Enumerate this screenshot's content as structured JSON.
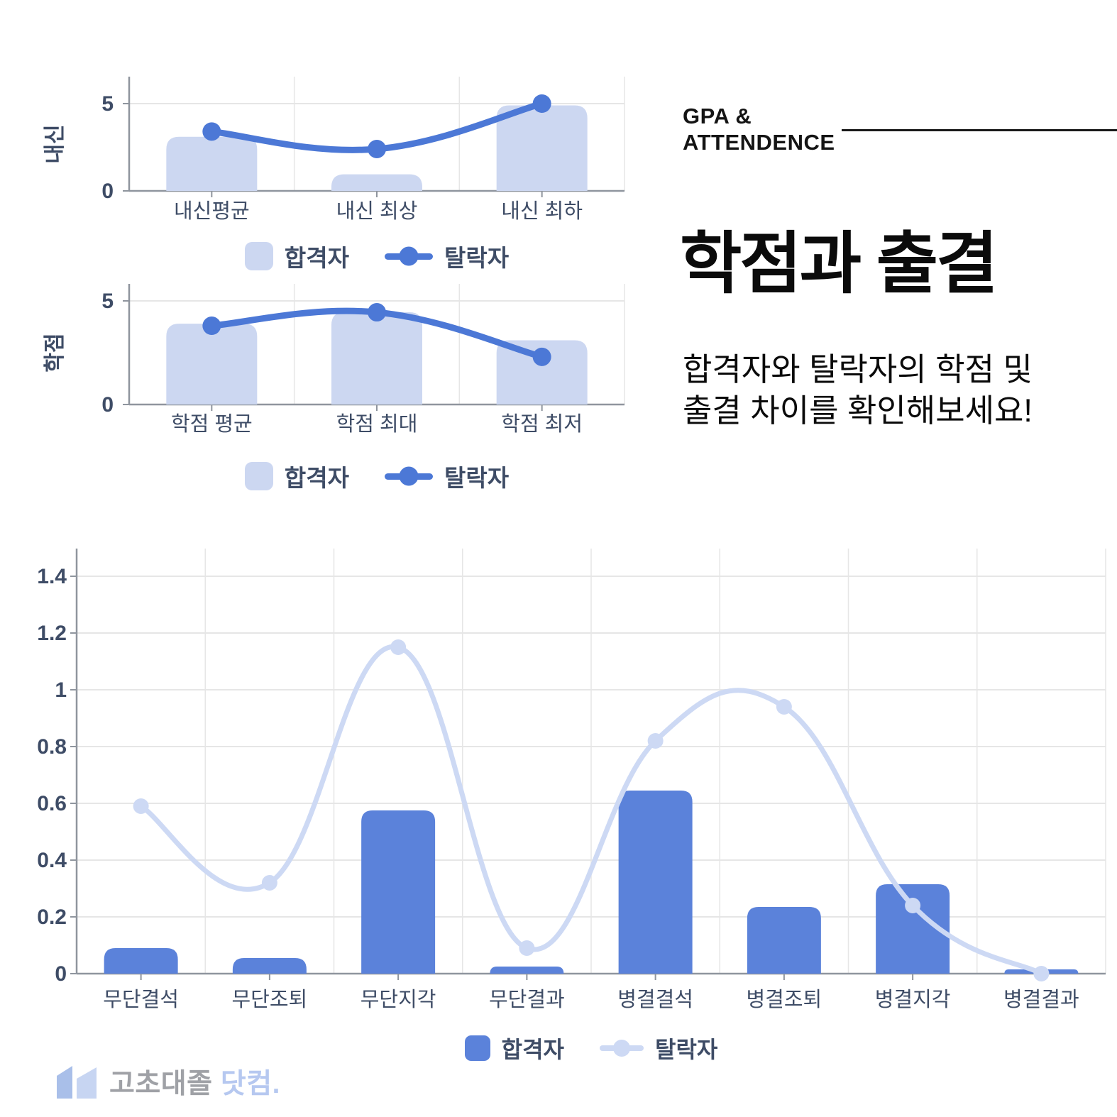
{
  "header": {
    "eyebrow_line1": "GPA &",
    "eyebrow_line2": "ATTENDENCE",
    "title": "학점과 출결",
    "subtitle_line1": "합격자와 탈락자의 학점 및",
    "subtitle_line2": "출결 차이를 확인해보세요!"
  },
  "colors": {
    "pass_bar_light": "#ccd7f1",
    "fail_line_blue": "#4c78d6",
    "pass_bar_blue": "#5b82da",
    "fail_line_light": "#cdd9f4",
    "axis_text": "#3e4c66",
    "grid_line": "#e6e6e6",
    "axis_line": "#8f959e",
    "brand_gray": "#9fa1a6",
    "brand_blue": "#b6c8f0",
    "brand_icon_dark": "#a9bfe9",
    "brand_icon_light": "#c7d5f2"
  },
  "chart_data": [
    {
      "id": "grades",
      "type": "bar",
      "title": "",
      "ylabel": "내신",
      "xlabel": "",
      "categories": [
        "내신평균",
        "내신 최상",
        "내신 최하"
      ],
      "series": [
        {
          "name": "합격자",
          "type": "bar",
          "values": [
            3.1,
            0.95,
            4.9
          ]
        },
        {
          "name": "탈락자",
          "type": "line",
          "values": [
            3.4,
            2.4,
            5.0
          ]
        }
      ],
      "ylim": [
        0,
        6
      ],
      "yticks": [
        [
          0,
          "0"
        ],
        [
          5,
          "5"
        ]
      ],
      "grid_y": [
        5
      ],
      "grid": "on",
      "legend_position": "bottom"
    },
    {
      "id": "gpa",
      "type": "bar",
      "title": "",
      "ylabel": "학점",
      "xlabel": "",
      "categories": [
        "학점 평균",
        "학점 최대",
        "학점 최저"
      ],
      "series": [
        {
          "name": "합격자",
          "type": "bar",
          "values": [
            3.9,
            4.45,
            3.1
          ]
        },
        {
          "name": "탈락자",
          "type": "line",
          "values": [
            3.8,
            4.45,
            2.3
          ]
        }
      ],
      "ylim": [
        0,
        6
      ],
      "yticks": [
        [
          0,
          "0"
        ],
        [
          5,
          "5"
        ]
      ],
      "grid_y": [
        5
      ],
      "grid": "on",
      "legend_position": "bottom"
    },
    {
      "id": "attendance",
      "type": "bar",
      "title": "",
      "ylabel": "",
      "xlabel": "",
      "categories": [
        "무단결석",
        "무단조퇴",
        "무단지각",
        "무단결과",
        "병결결석",
        "병결조퇴",
        "병결지각",
        "병결결과"
      ],
      "series": [
        {
          "name": "합격자",
          "type": "bar",
          "values": [
            0.09,
            0.055,
            0.575,
            0.025,
            0.645,
            0.235,
            0.315,
            0.015
          ]
        },
        {
          "name": "탈락자",
          "type": "line",
          "values": [
            0.59,
            0.32,
            1.15,
            0.09,
            0.82,
            0.94,
            0.24,
            0.0
          ]
        }
      ],
      "ylim": [
        0,
        1.5
      ],
      "yticks": [
        [
          0,
          "0"
        ],
        [
          0.2,
          "0.2"
        ],
        [
          0.4,
          "0.4"
        ],
        [
          0.6,
          "0.6"
        ],
        [
          0.8,
          "0.8"
        ],
        [
          1,
          "1"
        ],
        [
          1.2,
          "1.2"
        ],
        [
          1.4,
          "1.4"
        ]
      ],
      "grid_y": [
        0.2,
        0.4,
        0.6,
        0.8,
        1,
        1.2,
        1.4
      ],
      "grid": "on",
      "legend_position": "bottom"
    }
  ],
  "footer": {
    "brand_gray_text": "고초대졸",
    "brand_blue_text": "닷컴",
    "brand_dot": "."
  }
}
